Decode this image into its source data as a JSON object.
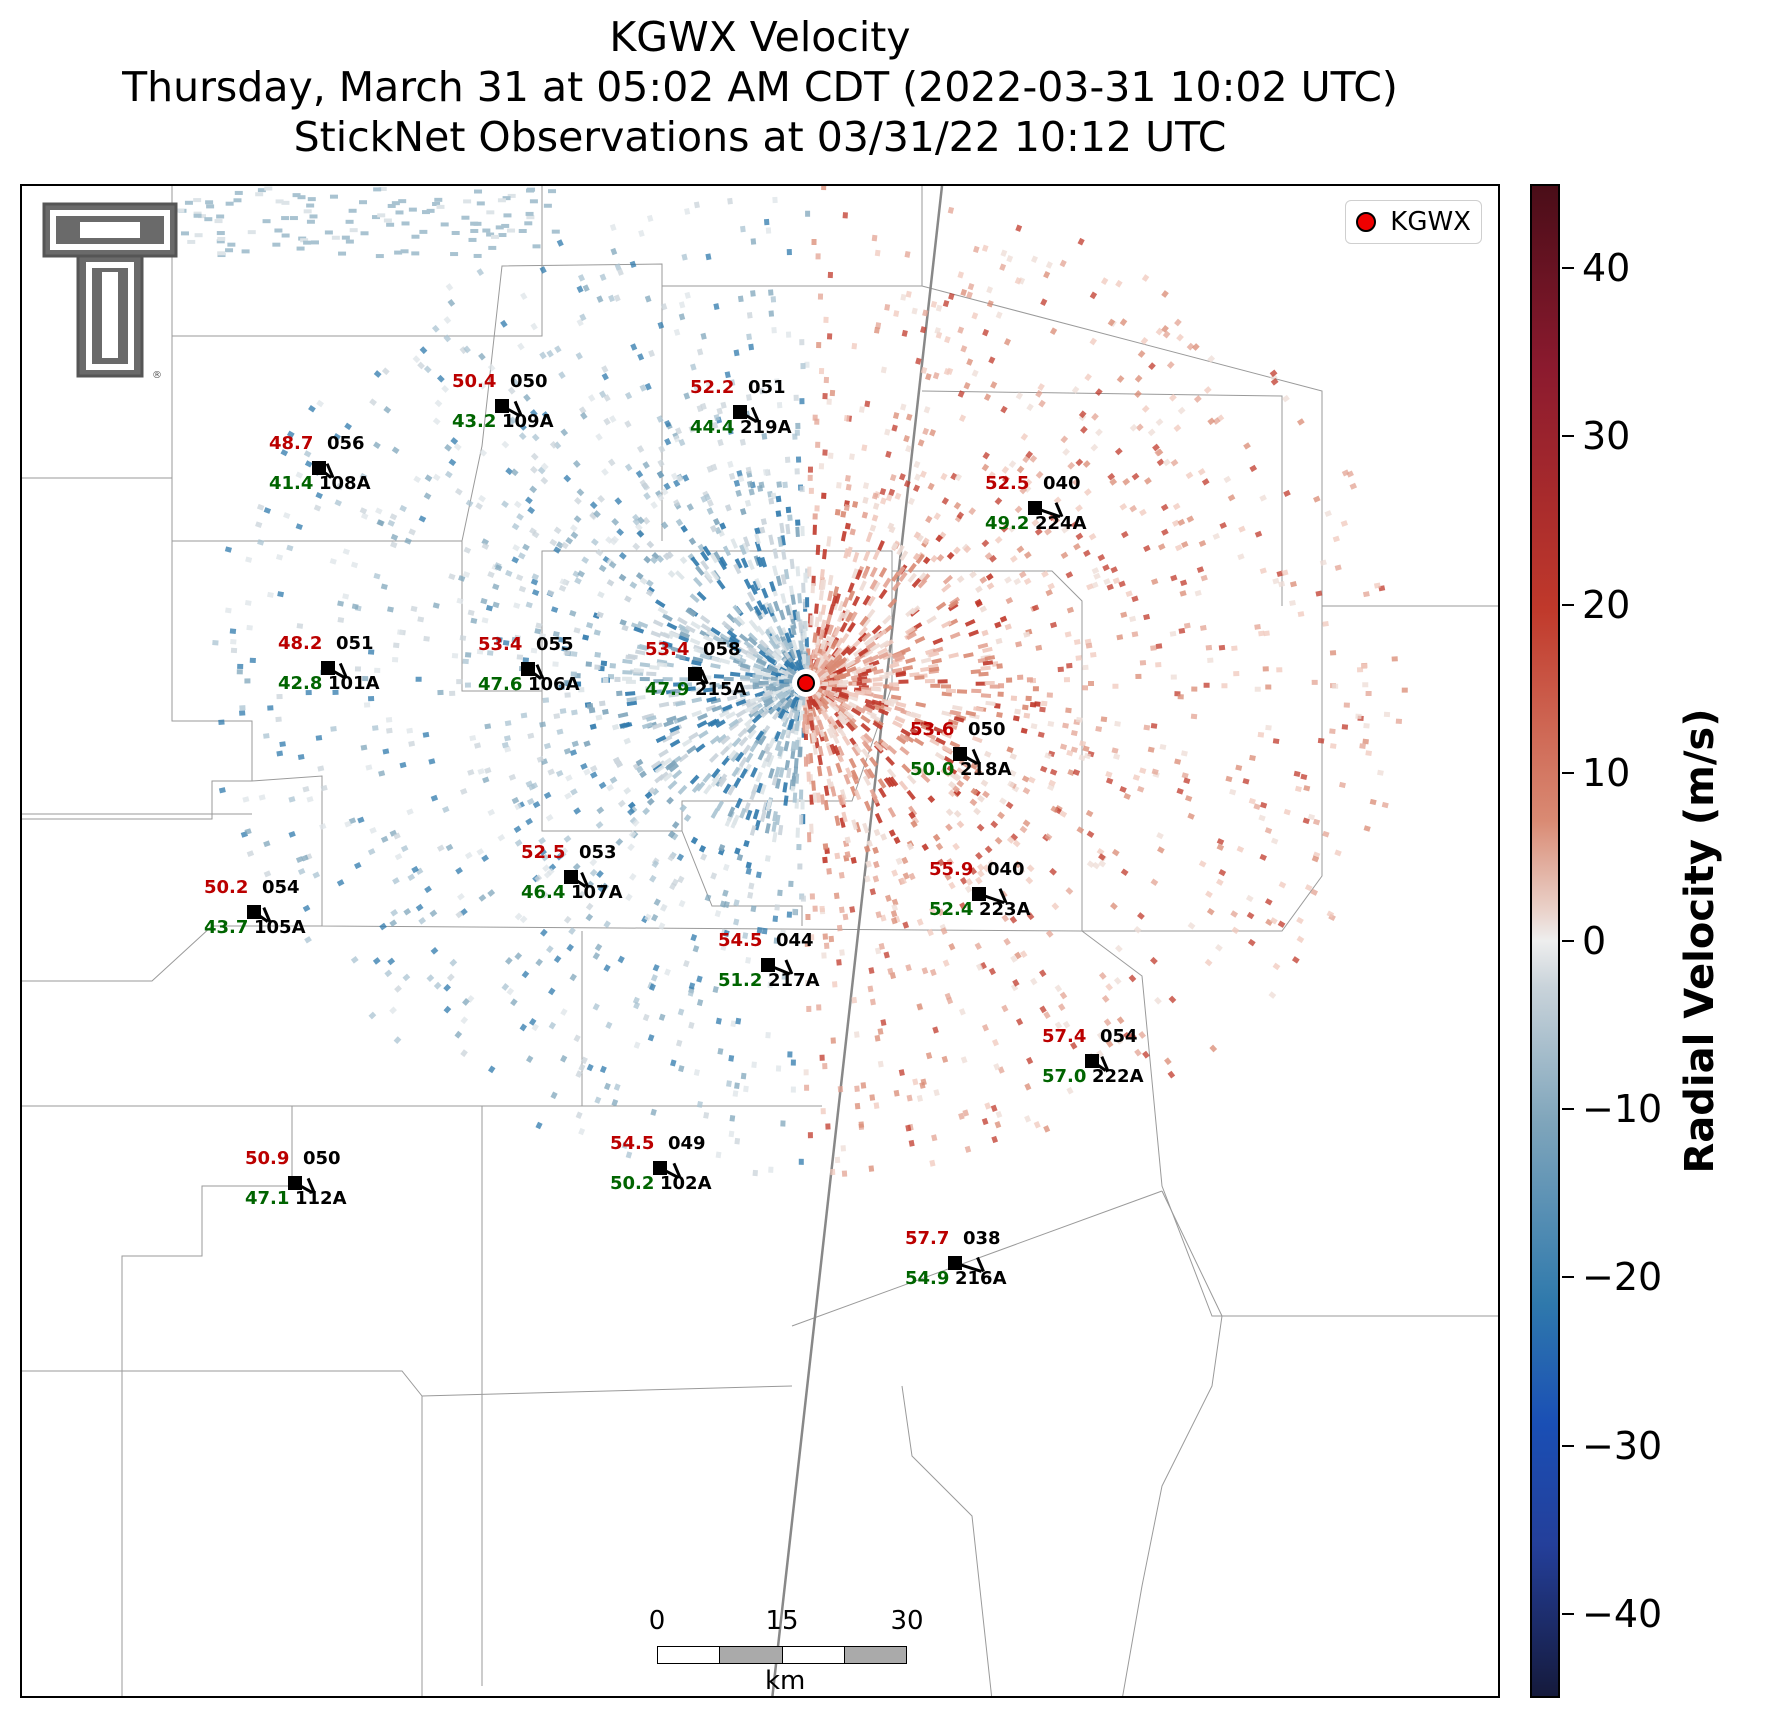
{
  "title": {
    "line1": "KGWX Velocity",
    "line2": "Thursday, March 31 at 05:02 AM CDT (2022-03-31 10:02 UTC)",
    "line3": "StickNet Observations at 03/31/22 10:12 UTC"
  },
  "legend": {
    "label": "KGWX",
    "marker_color": "#ee0000"
  },
  "scalebar": {
    "ticks": [
      "0",
      "15",
      "30"
    ],
    "unit": "km"
  },
  "colorbar": {
    "label": "Radial Velocity (m/s)",
    "range": [
      -45,
      45
    ],
    "ticks": [
      "40",
      "30",
      "20",
      "10",
      "0",
      "−10",
      "−20",
      "−30",
      "−40"
    ]
  },
  "logo": {
    "name": "texas-tech-double-t-logo"
  },
  "stations": [
    {
      "id": "108A",
      "temp": "48.7",
      "dew": "41.4",
      "dir": "056"
    },
    {
      "id": "109A",
      "temp": "50.4",
      "dew": "43.2",
      "dir": "050"
    },
    {
      "id": "219A",
      "temp": "52.2",
      "dew": "44.4",
      "dir": "051"
    },
    {
      "id": "224A",
      "temp": "52.5",
      "dew": "49.2",
      "dir": "040"
    },
    {
      "id": "101A",
      "temp": "48.2",
      "dew": "42.8",
      "dir": "051"
    },
    {
      "id": "106A",
      "temp": "53.4",
      "dew": "47.6",
      "dir": "055"
    },
    {
      "id": "215A",
      "temp": "53.4",
      "dew": "47.9",
      "dir": "058"
    },
    {
      "id": "218A",
      "temp": "53.6",
      "dew": "50.0",
      "dir": "050"
    },
    {
      "id": "107A",
      "temp": "52.5",
      "dew": "46.4",
      "dir": "053"
    },
    {
      "id": "105A",
      "temp": "50.2",
      "dew": "43.7",
      "dir": "054"
    },
    {
      "id": "223A",
      "temp": "55.9",
      "dew": "52.4",
      "dir": "040"
    },
    {
      "id": "217A",
      "temp": "54.5",
      "dew": "51.2",
      "dir": "044"
    },
    {
      "id": "222A",
      "temp": "57.4",
      "dew": "57.0",
      "dir": "054"
    },
    {
      "id": "112A",
      "temp": "50.9",
      "dew": "47.1",
      "dir": "050"
    },
    {
      "id": "102A",
      "temp": "54.5",
      "dew": "50.2",
      "dir": "049"
    },
    {
      "id": "216A",
      "temp": "57.7",
      "dew": "54.9",
      "dir": "038"
    }
  ],
  "colors": {
    "positive": "#c0392b",
    "negative": "#2f79ac",
    "temp": "#bb0000",
    "dew": "#006400"
  }
}
